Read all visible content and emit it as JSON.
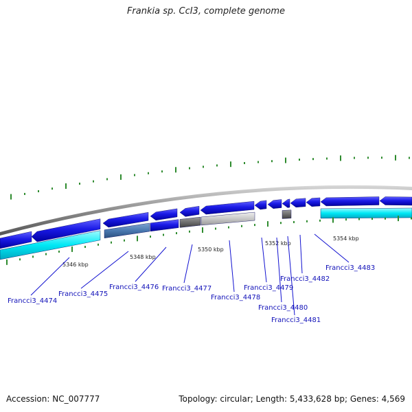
{
  "title": "Frankia sp. CcI3, complete genome",
  "accession": "Accession: NC_007777",
  "summary": "Topology: circular; Length: 5,433,628 bp; Genes: 4,569",
  "ticks": [
    "5346 kbp",
    "5348 kbp",
    "5350 kbp",
    "5352 kbp",
    "5354 kbp"
  ],
  "genes": [
    "Francci3_4474",
    "Francci3_4475",
    "Francci3_4476",
    "Francci3_4477",
    "Francci3_4478",
    "Francci3_4479",
    "Francci3_4480",
    "Francci3_4481",
    "Francci3_4482",
    "Francci3_4483"
  ],
  "colors": {
    "backbone": "#8c8c8c",
    "cds_forward": "#1a1ae6",
    "cds_reverse": "#00e0f0",
    "highlight": "#4a78b0",
    "pseudo_dark": "#6e6e6e",
    "pseudo_light": "#c8c8c8",
    "gc_skew": "#2e8b2e",
    "label": "#1010b8"
  }
}
